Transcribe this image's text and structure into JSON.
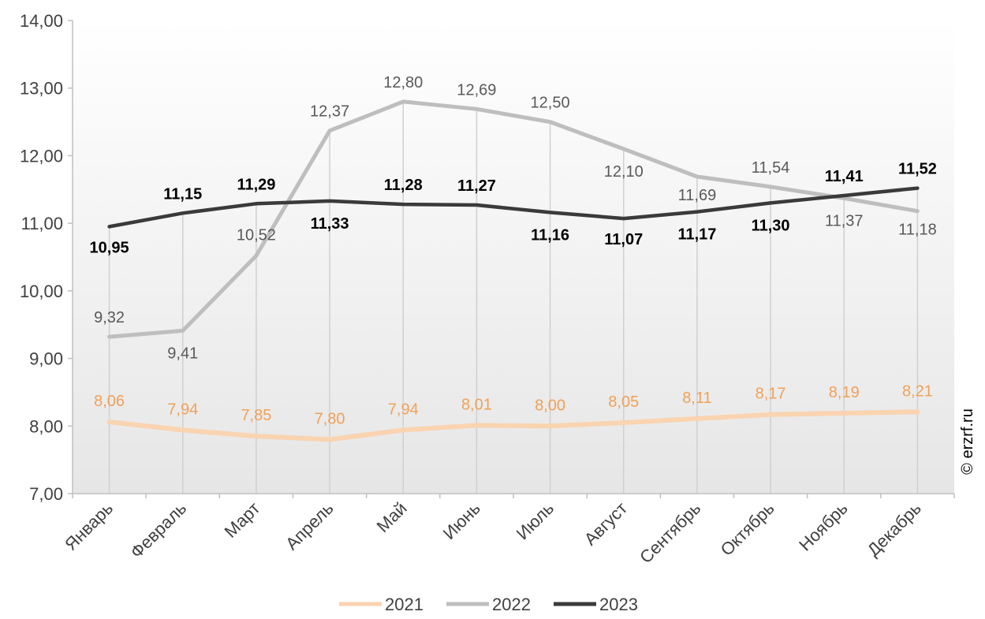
{
  "chart_data": {
    "type": "line",
    "categories": [
      "Январь",
      "Февраль",
      "Март",
      "Апрель",
      "Май",
      "Июнь",
      "Июль",
      "Август",
      "Сентябрь",
      "Октябрь",
      "Ноябрь",
      "Декабрь"
    ],
    "series": [
      {
        "name": "2021",
        "color": "#FAD3B0",
        "label_color": "#F0A158",
        "values": [
          8.06,
          7.94,
          7.85,
          7.8,
          7.94,
          8.01,
          8.0,
          8.05,
          8.11,
          8.17,
          8.19,
          8.21
        ],
        "labels": [
          "8,06",
          "7,94",
          "7,85",
          "7,80",
          "7,94",
          "8,01",
          "8,00",
          "8,05",
          "8,11",
          "8,17",
          "8,19",
          "8,21"
        ]
      },
      {
        "name": "2022",
        "color": "#BEBEBE",
        "label_color": "#595959",
        "values": [
          9.32,
          9.41,
          10.52,
          12.37,
          12.8,
          12.69,
          12.5,
          12.1,
          11.69,
          11.54,
          11.37,
          11.18
        ],
        "labels": [
          "9,32",
          "9,41",
          "10,52",
          "12,37",
          "12,80",
          "12,69",
          "12,50",
          "12,10",
          "11,69",
          "11,54",
          "11,37",
          "11,18"
        ]
      },
      {
        "name": "2023",
        "color": "#3A3A3A",
        "label_color": "#000000",
        "values": [
          10.95,
          11.15,
          11.29,
          11.33,
          11.28,
          11.27,
          11.16,
          11.07,
          11.17,
          11.3,
          11.41,
          11.52
        ],
        "labels": [
          "10,95",
          "11,15",
          "11,29",
          "11,33",
          "11,28",
          "11,27",
          "11,16",
          "11,07",
          "11,17",
          "11,30",
          "11,41",
          "11,52"
        ]
      }
    ],
    "y_ticks": [
      "7,00",
      "8,00",
      "9,00",
      "10,00",
      "11,00",
      "12,00",
      "13,00",
      "14,00"
    ],
    "ylim": [
      7,
      14
    ],
    "legend_position": "bottom",
    "grid": false
  },
  "watermark": "© erzrf.ru"
}
